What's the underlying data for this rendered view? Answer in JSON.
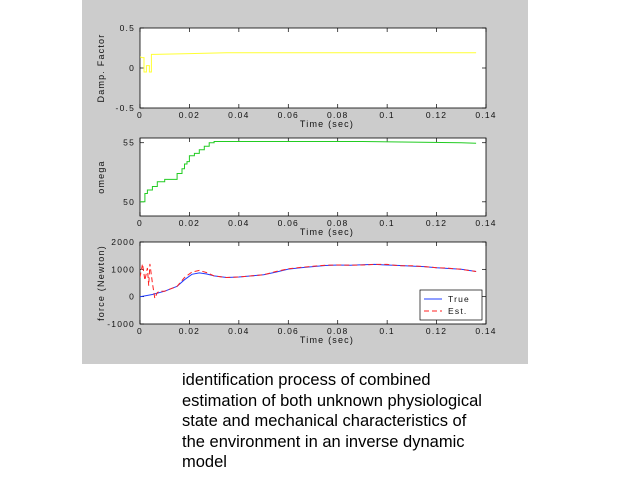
{
  "colors": {
    "figure_bg": "#cccccc",
    "axes_bg": "#ffffff",
    "damp_line": "#ffff33",
    "omega_line": "#22cc22",
    "true_line": "#1f3cff",
    "est_line": "#ff2222"
  },
  "chart_data": [
    {
      "type": "line",
      "ylabel": "Damp. Factor",
      "xlabel": "Time (sec)",
      "xlim": [
        0,
        0.14
      ],
      "ylim": [
        -0.5,
        0.5
      ],
      "xticks": [
        "0",
        "0.02",
        "0.04",
        "0.06",
        "0.08",
        "0.1",
        "0.12",
        "0.14"
      ],
      "yticks": [
        "0.5",
        "0",
        "-0.5"
      ],
      "series": [
        {
          "name": "Damp. Factor",
          "x": [
            0,
            0.0008,
            0.0016,
            0.0016,
            0.0026,
            0.0026,
            0.0038,
            0.0038,
            0.0046,
            0.0046,
            0.006,
            0.02,
            0.035,
            0.06,
            0.09,
            0.12,
            0.136
          ],
          "y": [
            0.14,
            0.13,
            0.13,
            -0.05,
            -0.05,
            0.03,
            0.03,
            -0.05,
            -0.05,
            0.17,
            0.17,
            0.18,
            0.19,
            0.19,
            0.19,
            0.19,
            0.19
          ]
        }
      ]
    },
    {
      "type": "line",
      "ylabel": "omega",
      "xlabel": "Time (sec)",
      "xlim": [
        0,
        0.14
      ],
      "ylim": [
        48.8,
        55.4
      ],
      "xticks": [
        "0",
        "0.02",
        "0.04",
        "0.06",
        "0.08",
        "0.1",
        "0.12",
        "0.14"
      ],
      "yticks": [
        "55",
        "50"
      ],
      "series": [
        {
          "name": "omega",
          "x": [
            0,
            0.002,
            0.002,
            0.003,
            0.003,
            0.005,
            0.005,
            0.007,
            0.007,
            0.01,
            0.01,
            0.015,
            0.015,
            0.017,
            0.017,
            0.018,
            0.018,
            0.019,
            0.019,
            0.02,
            0.02,
            0.022,
            0.022,
            0.024,
            0.024,
            0.026,
            0.026,
            0.028,
            0.028,
            0.03,
            0.03,
            0.06,
            0.09,
            0.11,
            0.13,
            0.136
          ],
          "y": [
            50.0,
            50.0,
            50.7,
            50.7,
            51.0,
            51.0,
            51.3,
            51.3,
            51.7,
            51.7,
            51.9,
            51.9,
            52.4,
            52.4,
            52.8,
            52.8,
            53.2,
            53.2,
            53.4,
            53.4,
            53.9,
            53.9,
            54.1,
            54.1,
            54.4,
            54.4,
            54.7,
            54.7,
            55.0,
            55.0,
            55.1,
            55.1,
            55.1,
            55.05,
            55.0,
            54.95
          ]
        }
      ]
    },
    {
      "type": "line",
      "ylabel": "force (Newton)",
      "xlabel": "Time (sec)",
      "xlim": [
        0,
        0.14
      ],
      "ylim": [
        -1000,
        2000
      ],
      "xticks": [
        "0",
        "0.02",
        "0.04",
        "0.06",
        "0.08",
        "0.1",
        "0.12",
        "0.14"
      ],
      "yticks": [
        "2000",
        "1000",
        "0",
        "-1000"
      ],
      "legend": "bottom-right",
      "series": [
        {
          "name": "True",
          "style": "solid",
          "x": [
            0,
            0.005,
            0.01,
            0.015,
            0.018,
            0.021,
            0.024,
            0.027,
            0.03,
            0.035,
            0.04,
            0.045,
            0.05,
            0.055,
            0.06,
            0.065,
            0.07,
            0.075,
            0.08,
            0.085,
            0.09,
            0.095,
            0.1,
            0.105,
            0.11,
            0.115,
            0.12,
            0.125,
            0.13,
            0.136
          ],
          "y": [
            0,
            80,
            200,
            380,
            620,
            820,
            870,
            830,
            760,
            700,
            720,
            760,
            800,
            900,
            1010,
            1060,
            1100,
            1140,
            1160,
            1150,
            1170,
            1180,
            1160,
            1140,
            1120,
            1100,
            1060,
            1030,
            1000,
            920
          ]
        },
        {
          "name": "Est.",
          "style": "dashed",
          "x": [
            0,
            0.001,
            0.002,
            0.003,
            0.0035,
            0.004,
            0.005,
            0.006,
            0.007,
            0.008,
            0.01,
            0.015,
            0.018,
            0.021,
            0.024,
            0.027,
            0.03,
            0.035,
            0.04,
            0.045,
            0.05,
            0.055,
            0.06,
            0.065,
            0.07,
            0.075,
            0.08,
            0.085,
            0.09,
            0.095,
            0.1,
            0.105,
            0.11,
            0.115,
            0.12,
            0.125,
            0.13,
            0.136
          ],
          "y": [
            700,
            1200,
            600,
            1050,
            400,
            1200,
            500,
            -60,
            150,
            200,
            200,
            380,
            700,
            900,
            960,
            880,
            760,
            700,
            720,
            760,
            800,
            920,
            1020,
            1070,
            1110,
            1150,
            1160,
            1150,
            1160,
            1180,
            1180,
            1130,
            1130,
            1100,
            1060,
            1040,
            1000,
            920
          ]
        }
      ]
    }
  ],
  "caption": {
    "lines": [
      "identification process of combined",
      "estimation of both unknown physiological",
      "state and mechanical characteristics of",
      "the environment in an inverse dynamic",
      "model"
    ]
  }
}
